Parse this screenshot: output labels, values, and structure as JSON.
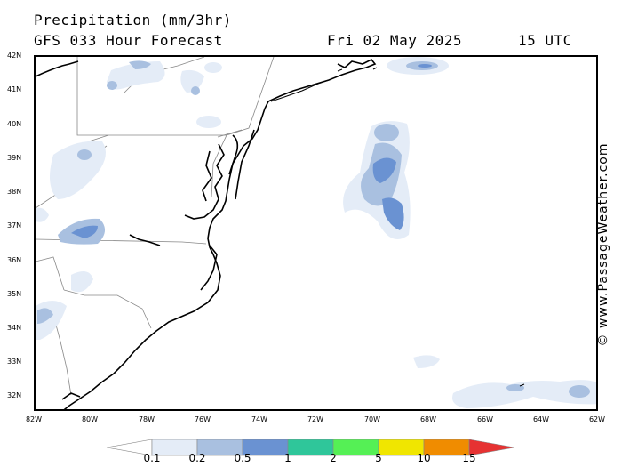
{
  "header": {
    "title": "Precipitation (mm/3hr)",
    "subtitle": "GFS 033 Hour Forecast",
    "date": "Fri 02 May 2025",
    "time": "15 UTC"
  },
  "credit": "© www.PassageWeather.com",
  "axes": {
    "lat_labels": [
      "42N",
      "41N",
      "40N",
      "39N",
      "38N",
      "37N",
      "36N",
      "35N",
      "34N",
      "33N",
      "32N"
    ],
    "lon_labels": [
      "82W",
      "80W",
      "78W",
      "76W",
      "74W",
      "72W",
      "70W",
      "68W",
      "66W",
      "64W",
      "62W"
    ]
  },
  "legend": {
    "labels": [
      "0.1",
      "0.2",
      "0.5",
      "1",
      "2",
      "5",
      "10",
      "15"
    ],
    "colors": [
      "#ffffff",
      "#e4ecf7",
      "#a9c0e0",
      "#6a92d2",
      "#2fc69a",
      "#55f055",
      "#f0e600",
      "#f08c00",
      "#e63232"
    ]
  }
}
